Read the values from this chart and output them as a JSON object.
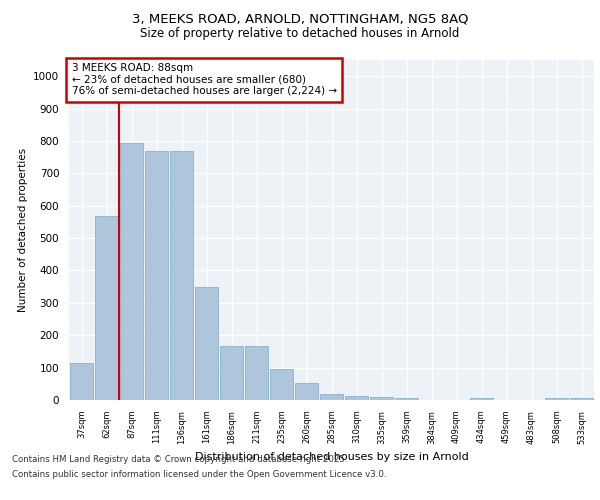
{
  "title_line1": "3, MEEKS ROAD, ARNOLD, NOTTINGHAM, NG5 8AQ",
  "title_line2": "Size of property relative to detached houses in Arnold",
  "xlabel": "Distribution of detached houses by size in Arnold",
  "ylabel": "Number of detached properties",
  "categories": [
    "37sqm",
    "62sqm",
    "87sqm",
    "111sqm",
    "136sqm",
    "161sqm",
    "186sqm",
    "211sqm",
    "235sqm",
    "260sqm",
    "285sqm",
    "310sqm",
    "335sqm",
    "359sqm",
    "384sqm",
    "409sqm",
    "434sqm",
    "459sqm",
    "483sqm",
    "508sqm",
    "533sqm"
  ],
  "values": [
    113,
    568,
    795,
    770,
    770,
    350,
    168,
    168,
    97,
    52,
    18,
    12,
    10,
    5,
    0,
    0,
    5,
    0,
    0,
    5,
    5
  ],
  "bar_color": "#aec6dc",
  "bar_edge_color": "#7aaac8",
  "vline_color": "#cc0000",
  "annotation_text": "3 MEEKS ROAD: 88sqm\n← 23% of detached houses are smaller (680)\n76% of semi-detached houses are larger (2,224) →",
  "annotation_box_edgecolor": "#cc0000",
  "ylim": [
    0,
    1050
  ],
  "yticks": [
    0,
    100,
    200,
    300,
    400,
    500,
    600,
    700,
    800,
    900,
    1000
  ],
  "bg_color": "#edf2f7",
  "grid_color": "#ffffff",
  "footer_line1": "Contains HM Land Registry data © Crown copyright and database right 2025.",
  "footer_line2": "Contains public sector information licensed under the Open Government Licence v3.0."
}
